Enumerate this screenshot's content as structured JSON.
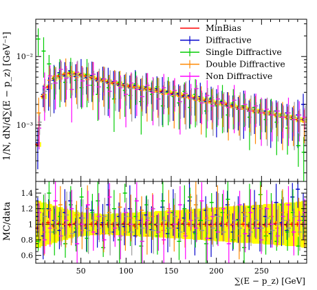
{
  "chart_data": [
    {
      "type": "scatter",
      "panel": "main",
      "ylabel": "1/N, dN/d∑(E − p_z) [GeV⁻¹]",
      "ytick_labels": [
        "10⁻²",
        "10⁻³"
      ],
      "ytick_values": [
        0.01,
        0.001
      ],
      "yscale": "log",
      "ylim": [
        0.00015,
        0.035
      ],
      "xlim": [
        0,
        300
      ],
      "x": [
        3,
        9,
        15,
        21,
        27,
        33,
        39,
        45,
        51,
        57,
        63,
        69,
        75,
        81,
        87,
        93,
        99,
        105,
        111,
        117,
        123,
        129,
        135,
        141,
        147,
        153,
        159,
        165,
        171,
        177,
        183,
        189,
        195,
        201,
        207,
        213,
        219,
        225,
        231,
        237,
        243,
        249,
        255,
        261,
        267,
        273,
        279,
        285,
        291,
        297
      ],
      "legend_position": "top-right",
      "series": [
        {
          "name": "MinBias",
          "color": "#ff0000",
          "values": [
            0.00052,
            0.0026,
            0.0036,
            0.0048,
            0.0052,
            0.0055,
            0.0057,
            0.0056,
            0.0054,
            0.0052,
            0.0049,
            0.0047,
            0.0045,
            0.0043,
            0.0041,
            0.004,
            0.0038,
            0.0037,
            0.0036,
            0.0035,
            0.0034,
            0.0033,
            0.0032,
            0.0031,
            0.003,
            0.0029,
            0.0028,
            0.0027,
            0.0026,
            0.0025,
            0.0024,
            0.0023,
            0.0022,
            0.0021,
            0.0021,
            0.002,
            0.0019,
            0.0018,
            0.0018,
            0.0017,
            0.0016,
            0.0016,
            0.0015,
            0.0015,
            0.0014,
            0.0014,
            0.0013,
            0.0013,
            0.0012,
            0.0012
          ]
        },
        {
          "name": "Diffractive",
          "color": "#0000cc",
          "values": [
            0.00055,
            0.0028,
            0.0033,
            0.0045,
            0.0058,
            0.0052,
            0.0062,
            0.0051,
            0.0055,
            0.0049,
            0.0053,
            0.0044,
            0.0047,
            0.0041,
            0.0043,
            0.0038,
            0.004,
            0.0035,
            0.0038,
            0.0033,
            0.0036,
            0.0031,
            0.0034,
            0.003,
            0.0031,
            0.0028,
            0.0029,
            0.0026,
            0.0027,
            0.0024,
            0.0026,
            0.0022,
            0.0024,
            0.002,
            0.0022,
            0.0019,
            0.002,
            0.0017,
            0.0019,
            0.0016,
            0.0018,
            0.0015,
            0.0016,
            0.0014,
            0.0016,
            0.0013,
            0.0015,
            0.0012,
            0.0014,
            0.002
          ]
        },
        {
          "name": "Single Diffractive",
          "color": "#00cc00",
          "values": [
            0.018,
            0.012,
            0.0078,
            0.0048,
            0.0055,
            0.0042,
            0.006,
            0.0045,
            0.0035,
            0.0055,
            0.0038,
            0.0028,
            0.0046,
            0.0035,
            0.0024,
            0.0042,
            0.0032,
            0.0027,
            0.004,
            0.0022,
            0.0034,
            0.0028,
            0.0036,
            0.0019,
            0.003,
            0.0026,
            0.0021,
            0.0031,
            0.0018,
            0.0028,
            0.0022,
            0.0016,
            0.0025,
            0.0019,
            0.0023,
            0.0014,
            0.0021,
            0.0017,
            0.0019,
            0.0013,
            0.0018,
            0.0015,
            0.0012,
            0.0016,
            0.0011,
            0.0014,
            0.0009,
            0.0012,
            0.0005,
            0.0004
          ]
        },
        {
          "name": "Double Diffractive",
          "color": "#ff8800",
          "values": [
            0.0015,
            0.0028,
            0.0045,
            0.0052,
            0.0047,
            0.0056,
            0.0051,
            0.0049,
            0.0054,
            0.0046,
            0.005,
            0.0043,
            0.0045,
            0.004,
            0.0042,
            0.0037,
            0.0039,
            0.0035,
            0.0036,
            0.0032,
            0.0034,
            0.003,
            0.0031,
            0.0028,
            0.0029,
            0.0027,
            0.0026,
            0.0025,
            0.0024,
            0.0023,
            0.0022,
            0.0021,
            0.0021,
            0.002,
            0.0019,
            0.0018,
            0.0018,
            0.0017,
            0.0017,
            0.0016,
            0.0016,
            0.0015,
            0.0015,
            0.0014,
            0.0014,
            0.0013,
            0.0013,
            0.0012,
            0.0012,
            0.0011
          ]
        },
        {
          "name": "Non Diffractive",
          "color": "#ff00ff",
          "values": [
            0.0009,
            0.0035,
            0.0052,
            0.0041,
            0.0065,
            0.0048,
            0.0033,
            0.0059,
            0.0044,
            0.0038,
            0.0055,
            0.0036,
            0.0047,
            0.0031,
            0.0044,
            0.0035,
            0.0028,
            0.0041,
            0.0033,
            0.0026,
            0.0038,
            0.003,
            0.0024,
            0.0035,
            0.0028,
            0.0032,
            0.0022,
            0.0029,
            0.0025,
            0.0034,
            0.0021,
            0.0027,
            0.0019,
            0.0024,
            0.0021,
            0.0018,
            0.0023,
            0.0017,
            0.002,
            0.0016,
            0.0019,
            0.0015,
            0.0017,
            0.0014,
            0.0016,
            0.0013,
            0.0015,
            0.0012,
            0.0014,
            0.0013
          ]
        },
        {
          "name": "",
          "color": "#999999",
          "values": [
            0.0011,
            0.0031,
            0.004,
            0.0049,
            0.0053,
            0.005,
            0.0055,
            0.0052,
            0.0048,
            0.0051,
            0.0046,
            0.0044,
            0.0042,
            0.0044,
            0.0039,
            0.0037,
            0.0039,
            0.0034,
            0.0035,
            0.0033,
            0.0031,
            0.0032,
            0.0029,
            0.003,
            0.0027,
            0.0028,
            0.0025,
            0.0026,
            0.0024,
            0.0024,
            0.0022,
            0.0023,
            0.0021,
            0.0021,
            0.0019,
            0.002,
            0.0018,
            0.0018,
            0.0017,
            0.0017,
            0.0016,
            0.0016,
            0.0015,
            0.0015,
            0.0014,
            0.0014,
            0.0013,
            0.0013,
            0.0012,
            0.0012
          ]
        }
      ],
      "band_color": "#ffff00"
    },
    {
      "type": "scatter",
      "panel": "ratio",
      "xlabel": "∑(E − p_z) [GeV]",
      "ylabel": "MC/data",
      "xlim": [
        0,
        300
      ],
      "ylim": [
        0.5,
        1.55
      ],
      "xtick_values": [
        50,
        100,
        150,
        200,
        250
      ],
      "xtick_labels": [
        "50",
        "100",
        "150",
        "200",
        "250"
      ],
      "ytick_values": [
        0.6,
        0.8,
        1,
        1.2,
        1.4
      ],
      "ytick_labels": [
        "0.6",
        "0.8",
        "1",
        "1.2",
        "1.4"
      ],
      "band_color": "#ffff00",
      "band_halfwidth": [
        0.3,
        0.28,
        0.26,
        0.24,
        0.22,
        0.2,
        0.18,
        0.16,
        0.15,
        0.15,
        0.14,
        0.14,
        0.13,
        0.13,
        0.14,
        0.14,
        0.15,
        0.15,
        0.15,
        0.16,
        0.16,
        0.16,
        0.17,
        0.17,
        0.18,
        0.18,
        0.18,
        0.19,
        0.19,
        0.2,
        0.2,
        0.21,
        0.21,
        0.22,
        0.22,
        0.23,
        0.23,
        0.24,
        0.24,
        0.24,
        0.25,
        0.25,
        0.26,
        0.26,
        0.27,
        0.27,
        0.28,
        0.28,
        0.29,
        0.3
      ],
      "x": [
        3,
        9,
        15,
        21,
        27,
        33,
        39,
        45,
        51,
        57,
        63,
        69,
        75,
        81,
        87,
        93,
        99,
        105,
        111,
        117,
        123,
        129,
        135,
        141,
        147,
        153,
        159,
        165,
        171,
        177,
        183,
        189,
        195,
        201,
        207,
        213,
        219,
        225,
        231,
        237,
        243,
        249,
        255,
        261,
        267,
        273,
        279,
        285,
        291,
        297
      ],
      "series": [
        {
          "name": "MinBias",
          "color": "#ff0000",
          "values": [
            0.95,
            1.0,
            1.02,
            0.98,
            1.01,
            1.0,
            0.99,
            1.01,
            1.0,
            0.98,
            1.0,
            1.01,
            0.99,
            1.0,
            1.0,
            0.99,
            1.01,
            1.0,
            0.98,
            1.0,
            1.0,
            1.01,
            0.99,
            1.0,
            1.0,
            0.99,
            1.0,
            1.01,
            1.0,
            0.98,
            1.0,
            1.0,
            0.99,
            1.0,
            1.01,
            1.0,
            0.99,
            1.0,
            1.0,
            0.98,
            1.0,
            1.0,
            0.99,
            1.0,
            1.01,
            1.0,
            0.99,
            1.0,
            1.0,
            1.0
          ]
        },
        {
          "name": "Diffractive",
          "color": "#0000cc",
          "values": [
            1.1,
            0.85,
            1.2,
            1.05,
            0.92,
            1.15,
            1.3,
            0.9,
            1.08,
            0.95,
            1.18,
            0.88,
            1.02,
            1.25,
            0.9,
            1.1,
            0.97,
            1.2,
            0.85,
            1.05,
            1.12,
            0.93,
            1.0,
            1.22,
            0.88,
            1.15,
            0.95,
            1.08,
            1.3,
            0.9,
            1.05,
            1.18,
            0.82,
            1.12,
            0.98,
            1.25,
            0.9,
            1.06,
            1.15,
            0.85,
            1.2,
            0.95,
            1.1,
            0.88,
            1.28,
            1.02,
            0.92,
            1.35,
            1.45,
            1.1
          ]
        },
        {
          "name": "Single Diffractive",
          "color": "#00cc00",
          "values": [
            0.78,
            1.2,
            1.4,
            0.9,
            1.1,
            0.75,
            1.25,
            0.95,
            1.35,
            0.82,
            1.15,
            1.3,
            0.7,
            1.05,
            1.2,
            0.8,
            1.4,
            0.9,
            1.1,
            0.72,
            1.25,
            1.0,
            0.85,
            1.3,
            0.95,
            1.15,
            0.78,
            1.2,
            1.35,
            0.88,
            1.05,
            0.75,
            1.28,
            0.92,
            1.15,
            1.32,
            0.8,
            1.05,
            0.7,
            1.22,
            0.95,
            1.38,
            0.85,
            1.1,
            0.78,
            1.25,
            0.9,
            1.15,
            0.72,
            1.05
          ]
        },
        {
          "name": "Double Diffractive",
          "color": "#ff8800",
          "values": [
            1.05,
            0.9,
            1.18,
            0.95,
            1.25,
            1.0,
            0.85,
            1.12,
            0.92,
            1.2,
            0.98,
            1.05,
            0.88,
            1.15,
            0.95,
            1.22,
            0.9,
            1.08,
            0.95,
            1.18,
            0.85,
            1.1,
            1.0,
            0.92,
            1.2,
            0.95,
            1.05,
            0.88,
            1.15,
            1.25,
            0.92,
            1.08,
            0.98,
            1.2,
            0.9,
            1.12,
            1.0,
            0.85,
            1.15,
            0.95,
            1.05,
            1.2,
            0.9,
            1.1,
            0.95,
            1.15,
            1.05,
            0.9,
            1.1,
            1.0
          ]
        },
        {
          "name": "Non Diffractive",
          "color": "#ff00ff",
          "values": [
            1.15,
            0.8,
            0.95,
            1.3,
            0.85,
            1.05,
            1.2,
            0.75,
            1.0,
            1.25,
            0.9,
            1.1,
            0.8,
            1.35,
            0.95,
            0.85,
            1.15,
            1.0,
            1.3,
            0.78,
            1.05,
            1.2,
            0.9,
            0.8,
            1.15,
            1.0,
            1.25,
            0.85,
            1.05,
            0.95,
            1.3,
            0.82,
            1.1,
            0.9,
            1.2,
            0.75,
            1.05,
            1.25,
            0.88,
            1.15,
            0.95,
            0.8,
            1.2,
            1.0,
            0.85,
            1.1,
            1.25,
            0.9,
            1.05,
            1.15
          ]
        },
        {
          "name": "",
          "color": "#999999",
          "values": [
            1.0,
            1.1,
            0.9,
            1.05,
            0.95,
            1.12,
            0.88,
            1.0,
            1.08,
            0.92,
            1.05,
            0.95,
            1.1,
            0.9,
            1.02,
            0.98,
            1.1,
            0.9,
            1.05,
            0.95,
            1.08,
            0.92,
            1.0,
            1.05,
            0.95,
            1.1,
            0.9,
            1.02,
            0.98,
            1.08,
            0.92,
            1.05,
            0.95,
            1.1,
            0.9,
            1.0,
            1.05,
            0.95,
            1.1,
            0.9,
            1.05,
            0.95,
            1.08,
            0.92,
            1.0,
            1.05,
            0.95,
            1.1,
            0.9,
            1.0
          ]
        }
      ]
    }
  ]
}
